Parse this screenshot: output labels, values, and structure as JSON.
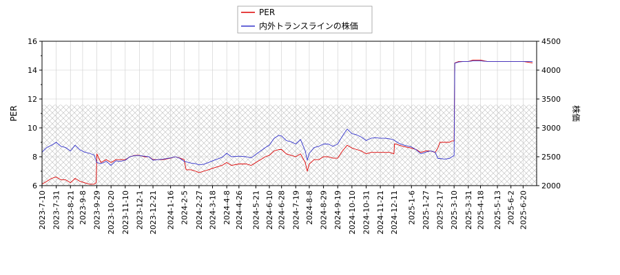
{
  "chart_data": {
    "type": "line",
    "legend": {
      "placement": "top-center",
      "entries": [
        "PER",
        "内外トランスラインの株価"
      ]
    },
    "colors": {
      "PER": "#dd0000",
      "price": "#3333cc",
      "hatch": "#bbbbbb",
      "grid": "#cccccc"
    },
    "y_left": {
      "label": "PER",
      "ylim": [
        6,
        16
      ],
      "ticks": [
        6,
        8,
        10,
        12,
        14,
        16
      ]
    },
    "y_right": {
      "label": "株価",
      "ylim": [
        2000,
        4500
      ],
      "ticks": [
        2000,
        2500,
        3000,
        3500,
        4000,
        4500
      ]
    },
    "hatch_band": {
      "axis": "left",
      "from": 6,
      "to": 11.6
    },
    "grid": true,
    "x_range": [
      "2023-07-10",
      "2025-07-10"
    ],
    "x_ticks": [
      "2023-7-10",
      "2023-7-31",
      "2023-8-21",
      "2023-9-8",
      "2023-9-29",
      "2023-10-20",
      "2023-11-10",
      "2023-12-1",
      "2023-12-21",
      "2024-1-16",
      "2024-2-5",
      "2024-2-27",
      "2024-3-18",
      "2024-4-8",
      "2024-4-26",
      "2024-5-21",
      "2024-6-10",
      "2024-6-28",
      "2024-7-19",
      "2024-8-8",
      "2024-8-29",
      "2024-9-19",
      "2024-10-10",
      "2024-10-31",
      "2024-11-21",
      "2024-12-11",
      "2025-1-6",
      "2025-1-27",
      "2025-2-17",
      "2025-3-10",
      "2025-3-31",
      "2025-4-18",
      "2025-5-13",
      "2025-6-2",
      "2025-6-20"
    ],
    "series": [
      {
        "name": "PER",
        "axis": "left",
        "points": [
          [
            "2023-07-10",
            6.1
          ],
          [
            "2023-07-17",
            6.3
          ],
          [
            "2023-07-24",
            6.5
          ],
          [
            "2023-07-31",
            6.6
          ],
          [
            "2023-08-07",
            6.4
          ],
          [
            "2023-08-14",
            6.4
          ],
          [
            "2023-08-21",
            6.2
          ],
          [
            "2023-08-28",
            6.5
          ],
          [
            "2023-09-04",
            6.3
          ],
          [
            "2023-09-11",
            6.2
          ],
          [
            "2023-09-18",
            6.1
          ],
          [
            "2023-09-25",
            6.1
          ],
          [
            "2023-09-28",
            6.2
          ],
          [
            "2023-09-29",
            8.2
          ],
          [
            "2023-10-05",
            7.6
          ],
          [
            "2023-10-13",
            7.8
          ],
          [
            "2023-10-20",
            7.6
          ],
          [
            "2023-10-27",
            7.8
          ],
          [
            "2023-11-03",
            7.8
          ],
          [
            "2023-11-10",
            7.8
          ],
          [
            "2023-11-17",
            8.0
          ],
          [
            "2023-11-24",
            8.1
          ],
          [
            "2023-12-01",
            8.1
          ],
          [
            "2023-12-08",
            8.0
          ],
          [
            "2023-12-15",
            8.0
          ],
          [
            "2023-12-21",
            7.8
          ],
          [
            "2023-12-28",
            7.8
          ],
          [
            "2024-01-05",
            7.8
          ],
          [
            "2024-01-16",
            7.9
          ],
          [
            "2024-01-23",
            8.0
          ],
          [
            "2024-01-30",
            7.9
          ],
          [
            "2024-02-05",
            7.8
          ],
          [
            "2024-02-08",
            7.1
          ],
          [
            "2024-02-15",
            7.1
          ],
          [
            "2024-02-22",
            7.0
          ],
          [
            "2024-02-27",
            6.9
          ],
          [
            "2024-03-05",
            7.0
          ],
          [
            "2024-03-12",
            7.1
          ],
          [
            "2024-03-18",
            7.2
          ],
          [
            "2024-03-25",
            7.3
          ],
          [
            "2024-04-01",
            7.4
          ],
          [
            "2024-04-08",
            7.6
          ],
          [
            "2024-04-15",
            7.4
          ],
          [
            "2024-04-26",
            7.5
          ],
          [
            "2024-05-07",
            7.5
          ],
          [
            "2024-05-14",
            7.4
          ],
          [
            "2024-05-21",
            7.6
          ],
          [
            "2024-05-28",
            7.8
          ],
          [
            "2024-06-04",
            8.0
          ],
          [
            "2024-06-10",
            8.1
          ],
          [
            "2024-06-17",
            8.4
          ],
          [
            "2024-06-24",
            8.5
          ],
          [
            "2024-06-28",
            8.5
          ],
          [
            "2024-07-05",
            8.2
          ],
          [
            "2024-07-12",
            8.1
          ],
          [
            "2024-07-19",
            8.0
          ],
          [
            "2024-07-26",
            8.2
          ],
          [
            "2024-08-02",
            7.6
          ],
          [
            "2024-08-05",
            7.0
          ],
          [
            "2024-08-08",
            7.5
          ],
          [
            "2024-08-15",
            7.8
          ],
          [
            "2024-08-22",
            7.8
          ],
          [
            "2024-08-29",
            8.0
          ],
          [
            "2024-09-05",
            8.0
          ],
          [
            "2024-09-12",
            7.9
          ],
          [
            "2024-09-19",
            7.9
          ],
          [
            "2024-09-26",
            8.4
          ],
          [
            "2024-10-03",
            8.8
          ],
          [
            "2024-10-10",
            8.6
          ],
          [
            "2024-10-17",
            8.5
          ],
          [
            "2024-10-24",
            8.4
          ],
          [
            "2024-10-31",
            8.2
          ],
          [
            "2024-11-07",
            8.3
          ],
          [
            "2024-11-14",
            8.3
          ],
          [
            "2024-11-21",
            8.3
          ],
          [
            "2024-11-28",
            8.3
          ],
          [
            "2024-12-05",
            8.3
          ],
          [
            "2024-12-11",
            8.2
          ],
          [
            "2024-12-12",
            8.9
          ],
          [
            "2024-12-19",
            8.8
          ],
          [
            "2024-12-26",
            8.7
          ],
          [
            "2025-01-06",
            8.6
          ],
          [
            "2025-01-13",
            8.5
          ],
          [
            "2025-01-20",
            8.3
          ],
          [
            "2025-01-27",
            8.4
          ],
          [
            "2025-02-03",
            8.4
          ],
          [
            "2025-02-10",
            8.3
          ],
          [
            "2025-02-14",
            8.6
          ],
          [
            "2025-02-17",
            9.0
          ],
          [
            "2025-02-24",
            9.0
          ],
          [
            "2025-03-03",
            9.0
          ],
          [
            "2025-03-07",
            9.1
          ],
          [
            "2025-03-10",
            9.1
          ],
          [
            "2025-03-11",
            14.5
          ],
          [
            "2025-03-17",
            14.6
          ],
          [
            "2025-03-24",
            14.6
          ],
          [
            "2025-03-31",
            14.6
          ],
          [
            "2025-04-07",
            14.7
          ],
          [
            "2025-04-18",
            14.7
          ],
          [
            "2025-04-28",
            14.6
          ],
          [
            "2025-05-13",
            14.6
          ],
          [
            "2025-05-23",
            14.6
          ],
          [
            "2025-06-02",
            14.6
          ],
          [
            "2025-06-10",
            14.6
          ],
          [
            "2025-06-20",
            14.6
          ],
          [
            "2025-07-04",
            14.5
          ]
        ]
      },
      {
        "name": "内外トランスラインの株価",
        "axis": "right",
        "points": [
          [
            "2023-07-10",
            2580
          ],
          [
            "2023-07-17",
            2660
          ],
          [
            "2023-07-24",
            2700
          ],
          [
            "2023-07-31",
            2750
          ],
          [
            "2023-08-07",
            2680
          ],
          [
            "2023-08-14",
            2660
          ],
          [
            "2023-08-21",
            2600
          ],
          [
            "2023-08-28",
            2700
          ],
          [
            "2023-09-04",
            2620
          ],
          [
            "2023-09-11",
            2580
          ],
          [
            "2023-09-18",
            2560
          ],
          [
            "2023-09-25",
            2530
          ],
          [
            "2023-09-29",
            2400
          ],
          [
            "2023-10-05",
            2380
          ],
          [
            "2023-10-13",
            2420
          ],
          [
            "2023-10-20",
            2350
          ],
          [
            "2023-10-27",
            2430
          ],
          [
            "2023-11-03",
            2420
          ],
          [
            "2023-11-10",
            2440
          ],
          [
            "2023-11-17",
            2500
          ],
          [
            "2023-11-24",
            2520
          ],
          [
            "2023-12-01",
            2520
          ],
          [
            "2023-12-08",
            2510
          ],
          [
            "2023-12-15",
            2500
          ],
          [
            "2023-12-21",
            2440
          ],
          [
            "2023-12-28",
            2450
          ],
          [
            "2024-01-05",
            2460
          ],
          [
            "2024-01-16",
            2480
          ],
          [
            "2024-01-23",
            2500
          ],
          [
            "2024-01-30",
            2470
          ],
          [
            "2024-02-05",
            2420
          ],
          [
            "2024-02-15",
            2390
          ],
          [
            "2024-02-22",
            2380
          ],
          [
            "2024-02-27",
            2360
          ],
          [
            "2024-03-05",
            2370
          ],
          [
            "2024-03-12",
            2400
          ],
          [
            "2024-03-18",
            2430
          ],
          [
            "2024-03-25",
            2460
          ],
          [
            "2024-04-01",
            2490
          ],
          [
            "2024-04-08",
            2560
          ],
          [
            "2024-04-15",
            2500
          ],
          [
            "2024-04-26",
            2510
          ],
          [
            "2024-05-07",
            2500
          ],
          [
            "2024-05-14",
            2480
          ],
          [
            "2024-05-21",
            2540
          ],
          [
            "2024-05-28",
            2600
          ],
          [
            "2024-06-04",
            2660
          ],
          [
            "2024-06-10",
            2700
          ],
          [
            "2024-06-17",
            2820
          ],
          [
            "2024-06-24",
            2870
          ],
          [
            "2024-06-28",
            2860
          ],
          [
            "2024-07-05",
            2780
          ],
          [
            "2024-07-12",
            2760
          ],
          [
            "2024-07-19",
            2720
          ],
          [
            "2024-07-26",
            2800
          ],
          [
            "2024-08-02",
            2600
          ],
          [
            "2024-08-05",
            2440
          ],
          [
            "2024-08-08",
            2560
          ],
          [
            "2024-08-15",
            2660
          ],
          [
            "2024-08-22",
            2680
          ],
          [
            "2024-08-29",
            2720
          ],
          [
            "2024-09-05",
            2720
          ],
          [
            "2024-09-12",
            2680
          ],
          [
            "2024-09-19",
            2720
          ],
          [
            "2024-09-26",
            2860
          ],
          [
            "2024-10-03",
            2980
          ],
          [
            "2024-10-10",
            2900
          ],
          [
            "2024-10-17",
            2880
          ],
          [
            "2024-10-24",
            2840
          ],
          [
            "2024-10-31",
            2780
          ],
          [
            "2024-11-07",
            2820
          ],
          [
            "2024-11-14",
            2830
          ],
          [
            "2024-11-21",
            2820
          ],
          [
            "2024-11-28",
            2820
          ],
          [
            "2024-12-05",
            2810
          ],
          [
            "2024-12-11",
            2790
          ],
          [
            "2024-12-19",
            2730
          ],
          [
            "2024-12-26",
            2700
          ],
          [
            "2025-01-06",
            2670
          ],
          [
            "2025-01-13",
            2620
          ],
          [
            "2025-01-20",
            2550
          ],
          [
            "2025-01-27",
            2580
          ],
          [
            "2025-02-03",
            2600
          ],
          [
            "2025-02-10",
            2580
          ],
          [
            "2025-02-14",
            2470
          ],
          [
            "2025-02-17",
            2470
          ],
          [
            "2025-02-24",
            2460
          ],
          [
            "2025-03-03",
            2470
          ],
          [
            "2025-03-07",
            2500
          ],
          [
            "2025-03-10",
            2520
          ],
          [
            "2025-03-11",
            4120
          ],
          [
            "2025-03-17",
            4140
          ],
          [
            "2025-03-24",
            4150
          ],
          [
            "2025-03-31",
            4150
          ],
          [
            "2025-04-07",
            4160
          ],
          [
            "2025-04-18",
            4160
          ],
          [
            "2025-04-28",
            4150
          ],
          [
            "2025-05-13",
            4150
          ],
          [
            "2025-05-23",
            4150
          ],
          [
            "2025-06-02",
            4150
          ],
          [
            "2025-06-10",
            4150
          ],
          [
            "2025-06-20",
            4150
          ],
          [
            "2025-07-04",
            4150
          ]
        ]
      }
    ]
  }
}
